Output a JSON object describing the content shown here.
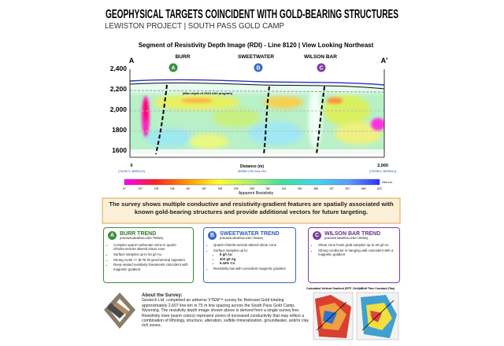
{
  "header": {
    "title": "GEOPHYSICAL TARGETS COINCIDENT WITH GOLD-BEARING STRUCTURES",
    "subtitle": "LEWISTON PROJECT  |  SOUTH PASS GOLD CAMP"
  },
  "section": {
    "title": "Segment of Resistivity Depth Image (RDI) - Line 8120  |  View Looking Northeast",
    "end_left": "A",
    "end_right": "A′",
    "targets": [
      {
        "marker": "A",
        "label": "BURR"
      },
      {
        "marker": "B",
        "label": "SWEETWATER"
      },
      {
        "marker": "C",
        "label": "WILSON BAR"
      }
    ],
    "y_labels": [
      "2,400",
      "2,200",
      "2,000",
      "1800",
      "1600"
    ],
    "annotation": "(Max depth of 2024 drill program)",
    "x_start": "0",
    "x_label": "Distance (m)",
    "x_end": "2,000",
    "coord_left": "(741267.9, 4699114.9)",
    "coord_mid": "803581 UTM Zone 12N",
    "coord_right": "(743798.0, 4697825.3)",
    "scale_unit": "Ohm-m",
    "scale_title": "Apparent Resistivity",
    "scale_labels": [
      "67",
      "107",
      "128",
      "146",
      "167",
      "187",
      "208",
      "230",
      "250",
      "282",
      "314",
      "351",
      "386",
      "437",
      "537",
      "663",
      "822"
    ]
  },
  "banner": "The survey shows multiple conductive and resistivity-gradient features are spatially associated with known gold-bearing structures and provide additional vectors for future targeting.",
  "boxes": [
    {
      "marker": "A",
      "title": "BURR TREND",
      "subtitle": "(KNOWN MINERALIZED TREND)",
      "bullets": [
        "Complex quartz-carbonate veins in quartz-chlorite-sericite altered shear zone",
        "Surface samples up to 54 g/t Au",
        "Strong Au-Bi +/- Bi-Te-W geochemical signature",
        "Deep-seated resistivity lineaments coincident with magnetic gradient"
      ]
    },
    {
      "marker": "B",
      "title": "SWEETWATER TREND",
      "subtitle": "(KNOWN MINERALIZED TREND)",
      "bullets": [
        "Quartz-chlorite-sericite altered shear zone",
        "Surface samples up to:",
        "Resistivity low with coincident magnetic gradient"
      ],
      "sub_bullets": [
        "8 g/t Au",
        "403 g/t Ag",
        "6.44% Cu"
      ]
    },
    {
      "marker": "C",
      "title": "WILSON BAR TREND",
      "subtitle": "(KNOWN MINERALIZED TREND)",
      "bullets": [
        "Shear zone hosts grab samples up to 30 g/t Au",
        "Strong conductor in hanging wall coincident with a magnetic gradient"
      ]
    }
  ],
  "about": {
    "title": "About the Survey:",
    "text": "Geotech Ltd. completed an airborne VTEM™ survey for Relevant Gold totaling approximately 2,607 line-km in 75 m line spacing across the South Pass Gold Camp, Wyoming. The resistivity depth image shown above is derived from a single survey line. Resistivity lows (warm colors) represent zones of increased conductivity that may reflect a combination of lithology, structure, alteration, sulfide mineralization, groundwater, and/or clay rich zones."
  },
  "maps": [
    {
      "title": "Calculated Vertical Gradient (RTP_Grid)"
    },
    {
      "title": "dB/dt Time Constant (Tau)"
    }
  ]
}
